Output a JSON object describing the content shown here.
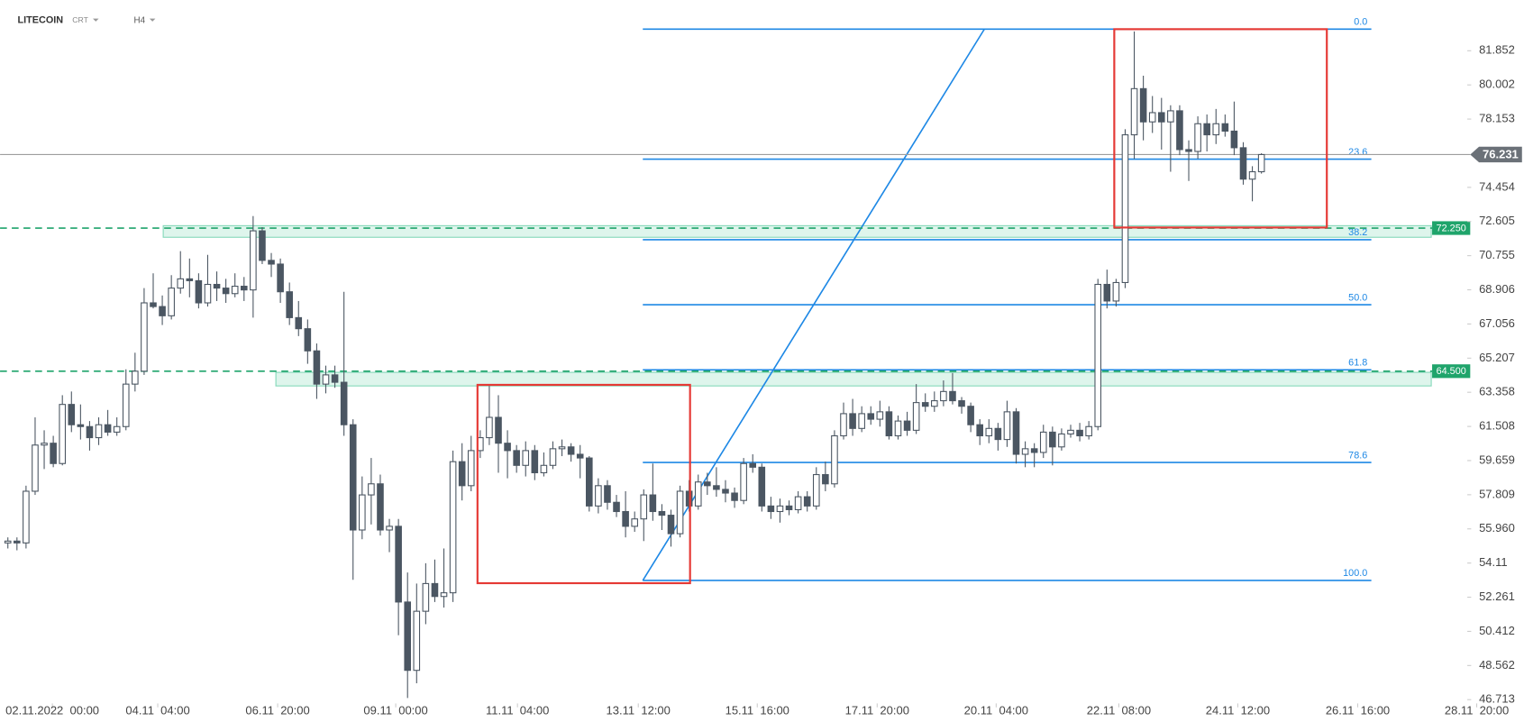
{
  "header": {
    "symbol": "LITECOIN",
    "source": "CRT",
    "interval": "H4"
  },
  "chart_data": {
    "type": "candlestick",
    "up_color": "#ffffff",
    "down_color": "#4b5662",
    "wick_color": "#4b5662",
    "xlim": [
      -0.86,
      166.9
    ],
    "ylim": [
      45.45,
      84.6
    ],
    "xticks": [
      {
        "value": 4.9,
        "label": "02.11.2022  00:00"
      },
      {
        "value": 16.5,
        "label": "04.11  04:00"
      },
      {
        "value": 29.7,
        "label": "06.11  20:00"
      },
      {
        "value": 42.7,
        "label": "09.11  00:00"
      },
      {
        "value": 56.1,
        "label": "11.11  04:00"
      },
      {
        "value": 69.4,
        "label": "13.11  12:00"
      },
      {
        "value": 82.5,
        "label": "15.11  16:00"
      },
      {
        "value": 95.7,
        "label": "17.11  20:00"
      },
      {
        "value": 108.8,
        "label": "20.11  04:00"
      },
      {
        "value": 122.3,
        "label": "22.11  08:00"
      },
      {
        "value": 135.4,
        "label": "24.11  12:00"
      },
      {
        "value": 148.6,
        "label": "26.11  16:00"
      },
      {
        "value": 161.7,
        "label": "28.11  20:00"
      }
    ],
    "yticks": [
      81.852,
      80.002,
      78.153,
      74.454,
      72.605,
      70.755,
      68.906,
      67.056,
      65.207,
      63.358,
      61.508,
      59.659,
      57.809,
      {
        "value": 55.96,
        "label": "55.960"
      },
      54.11,
      52.261,
      50.412,
      48.562,
      46.713
    ],
    "current_price": 76.231,
    "levels": [
      {
        "value": 72.25,
        "label": "72.250"
      },
      {
        "value": 64.5,
        "label": "64.500"
      }
    ],
    "zones": [
      {
        "from": 17.1,
        "to": 156.7,
        "low": 71.75,
        "high": 72.38
      },
      {
        "from": 29.5,
        "to": 156.7,
        "low": 63.7,
        "high": 64.44
      }
    ],
    "boxes": [
      {
        "from": 51.7,
        "to": 75.1,
        "low": 53.02,
        "high": 63.76
      },
      {
        "from": 121.8,
        "to": 145.2,
        "low": 72.28,
        "high": 83.02
      }
    ],
    "trendline": {
      "x": [
        69.9,
        107.5
      ],
      "y": [
        53.17,
        83.02
      ]
    },
    "fib_x": [
      69.9,
      150.1
    ],
    "fib_levels": [
      {
        "label": "0.0",
        "price": 83.02
      },
      {
        "label": "23.6",
        "price": 75.98
      },
      {
        "label": "38.2",
        "price": 71.62
      },
      {
        "label": "50.0",
        "price": 68.1
      },
      {
        "label": "61.8",
        "price": 64.57
      },
      {
        "label": "78.6",
        "price": 59.56
      },
      {
        "label": "100.0",
        "price": 53.17
      }
    ],
    "candles": [
      [
        55.2,
        55.5,
        54.9,
        55.3
      ],
      [
        55.3,
        55.5,
        54.8,
        55.2
      ],
      [
        55.2,
        58.3,
        54.9,
        58.0
      ],
      [
        58.0,
        62.0,
        57.8,
        60.5
      ],
      [
        60.5,
        61.3,
        59.2,
        60.6
      ],
      [
        60.6,
        61.0,
        59.3,
        59.5
      ],
      [
        59.5,
        63.2,
        59.4,
        62.7
      ],
      [
        62.7,
        63.4,
        61.2,
        61.6
      ],
      [
        61.6,
        62.7,
        60.8,
        61.5
      ],
      [
        61.5,
        61.8,
        60.2,
        60.9
      ],
      [
        60.9,
        62.0,
        60.5,
        61.6
      ],
      [
        61.6,
        62.4,
        61.0,
        61.2
      ],
      [
        61.2,
        62.0,
        61.0,
        61.5
      ],
      [
        61.5,
        64.6,
        61.3,
        63.8
      ],
      [
        63.8,
        65.5,
        63.4,
        64.5
      ],
      [
        64.5,
        69.0,
        64.3,
        68.2
      ],
      [
        68.2,
        69.8,
        67.9,
        68.0
      ],
      [
        68.0,
        68.6,
        67.0,
        67.5
      ],
      [
        67.5,
        69.7,
        67.3,
        69.0
      ],
      [
        69.0,
        71.0,
        68.7,
        69.5
      ],
      [
        69.5,
        70.6,
        68.5,
        69.4
      ],
      [
        69.4,
        69.8,
        67.9,
        68.2
      ],
      [
        68.2,
        70.8,
        68.0,
        69.2
      ],
      [
        69.2,
        69.9,
        68.3,
        69.0
      ],
      [
        69.0,
        69.5,
        68.2,
        68.7
      ],
      [
        68.7,
        69.8,
        68.5,
        69.1
      ],
      [
        69.1,
        69.6,
        68.3,
        68.9
      ],
      [
        68.9,
        72.9,
        67.4,
        72.1
      ],
      [
        72.1,
        72.3,
        70.3,
        70.5
      ],
      [
        70.5,
        70.9,
        69.6,
        70.3
      ],
      [
        70.3,
        70.6,
        68.2,
        68.8
      ],
      [
        68.8,
        69.3,
        67.0,
        67.4
      ],
      [
        67.4,
        68.3,
        66.4,
        66.8
      ],
      [
        66.8,
        67.3,
        64.9,
        65.6
      ],
      [
        65.6,
        66.0,
        63.0,
        63.8
      ],
      [
        63.8,
        64.8,
        63.3,
        64.3
      ],
      [
        64.3,
        64.8,
        63.6,
        63.9
      ],
      [
        63.9,
        68.8,
        61.0,
        61.6
      ],
      [
        61.6,
        61.9,
        53.2,
        55.9
      ],
      [
        55.9,
        58.8,
        55.4,
        57.8
      ],
      [
        57.8,
        59.8,
        56.2,
        58.4
      ],
      [
        58.4,
        58.9,
        55.6,
        55.9
      ],
      [
        55.9,
        56.5,
        54.7,
        56.1
      ],
      [
        56.1,
        56.5,
        50.2,
        52.0
      ],
      [
        52.0,
        53.6,
        46.8,
        48.3
      ],
      [
        48.3,
        53.0,
        47.6,
        51.5
      ],
      [
        51.5,
        54.1,
        50.8,
        53.0
      ],
      [
        53.0,
        54.3,
        52.0,
        52.3
      ],
      [
        52.3,
        54.9,
        51.7,
        52.5
      ],
      [
        52.5,
        60.2,
        52.0,
        59.6
      ],
      [
        59.6,
        60.6,
        57.5,
        58.3
      ],
      [
        58.3,
        61.0,
        58.0,
        60.2
      ],
      [
        60.2,
        61.3,
        59.8,
        60.9
      ],
      [
        60.9,
        63.7,
        60.5,
        62.0
      ],
      [
        62.0,
        63.2,
        59.0,
        60.6
      ],
      [
        60.6,
        61.3,
        58.7,
        60.2
      ],
      [
        60.2,
        60.5,
        59.0,
        59.4
      ],
      [
        59.4,
        60.7,
        58.8,
        60.2
      ],
      [
        60.2,
        60.5,
        58.6,
        59.0
      ],
      [
        59.0,
        60.1,
        58.8,
        59.4
      ],
      [
        59.4,
        60.7,
        59.2,
        60.3
      ],
      [
        60.3,
        60.8,
        59.9,
        60.4
      ],
      [
        60.4,
        60.6,
        59.6,
        60.0
      ],
      [
        60.0,
        60.5,
        58.7,
        59.8
      ],
      [
        59.8,
        59.9,
        56.9,
        57.2
      ],
      [
        57.2,
        58.7,
        56.8,
        58.3
      ],
      [
        58.3,
        58.6,
        57.0,
        57.4
      ],
      [
        57.4,
        57.8,
        56.6,
        56.9
      ],
      [
        56.9,
        58.0,
        55.5,
        56.1
      ],
      [
        56.1,
        56.9,
        55.8,
        56.5
      ],
      [
        56.5,
        58.1,
        55.3,
        57.8
      ],
      [
        57.8,
        59.5,
        56.4,
        56.9
      ],
      [
        56.9,
        57.3,
        55.9,
        56.7
      ],
      [
        56.7,
        57.0,
        55.0,
        55.7
      ],
      [
        55.7,
        58.3,
        55.5,
        58.0
      ],
      [
        58.0,
        58.6,
        56.9,
        57.2
      ],
      [
        57.2,
        58.9,
        57.0,
        58.5
      ],
      [
        58.5,
        59.0,
        57.8,
        58.3
      ],
      [
        58.3,
        59.3,
        57.7,
        58.1
      ],
      [
        58.1,
        58.6,
        57.4,
        57.9
      ],
      [
        57.9,
        58.2,
        57.1,
        57.5
      ],
      [
        57.5,
        59.8,
        57.3,
        59.5
      ],
      [
        59.5,
        60.0,
        59.0,
        59.3
      ],
      [
        59.3,
        59.5,
        56.9,
        57.2
      ],
      [
        57.2,
        57.7,
        56.5,
        56.9
      ],
      [
        56.9,
        57.6,
        56.3,
        57.2
      ],
      [
        57.2,
        57.5,
        56.7,
        57.0
      ],
      [
        57.0,
        58.0,
        56.8,
        57.7
      ],
      [
        57.7,
        58.0,
        56.9,
        57.2
      ],
      [
        57.2,
        59.3,
        57.0,
        58.9
      ],
      [
        58.9,
        59.6,
        58.0,
        58.4
      ],
      [
        58.4,
        61.3,
        58.2,
        61.0
      ],
      [
        61.0,
        62.8,
        60.8,
        62.2
      ],
      [
        62.2,
        63.0,
        61.0,
        61.4
      ],
      [
        61.4,
        62.6,
        61.2,
        62.2
      ],
      [
        62.2,
        62.6,
        61.6,
        61.9
      ],
      [
        61.9,
        62.9,
        61.5,
        62.3
      ],
      [
        62.3,
        62.6,
        60.8,
        61.0
      ],
      [
        61.0,
        62.1,
        60.8,
        61.8
      ],
      [
        61.8,
        62.3,
        61.0,
        61.3
      ],
      [
        61.3,
        63.8,
        61.1,
        62.8
      ],
      [
        62.8,
        63.3,
        62.3,
        62.6
      ],
      [
        62.6,
        63.4,
        62.3,
        62.9
      ],
      [
        62.9,
        64.0,
        62.6,
        63.4
      ],
      [
        63.4,
        64.4,
        62.7,
        62.9
      ],
      [
        62.9,
        63.1,
        62.2,
        62.6
      ],
      [
        62.6,
        62.8,
        61.2,
        61.6
      ],
      [
        61.6,
        61.9,
        60.5,
        61.0
      ],
      [
        61.0,
        61.9,
        60.6,
        61.4
      ],
      [
        61.4,
        61.7,
        60.2,
        60.8
      ],
      [
        60.8,
        62.9,
        60.4,
        62.3
      ],
      [
        62.3,
        62.5,
        59.5,
        60.0
      ],
      [
        60.0,
        60.7,
        59.3,
        60.3
      ],
      [
        60.3,
        60.6,
        59.3,
        60.1
      ],
      [
        60.1,
        61.6,
        59.8,
        61.2
      ],
      [
        61.2,
        61.5,
        59.4,
        60.4
      ],
      [
        60.4,
        61.4,
        60.2,
        61.1
      ],
      [
        61.1,
        61.6,
        60.9,
        61.3
      ],
      [
        61.3,
        61.7,
        60.7,
        61.0
      ],
      [
        61.0,
        61.8,
        60.8,
        61.5
      ],
      [
        61.5,
        69.5,
        61.3,
        69.2
      ],
      [
        69.2,
        70.0,
        67.9,
        68.3
      ],
      [
        68.3,
        69.5,
        68.0,
        69.3
      ],
      [
        69.3,
        77.6,
        69.0,
        77.3
      ],
      [
        77.3,
        82.9,
        76.0,
        79.8
      ],
      [
        79.8,
        80.5,
        77.0,
        78.0
      ],
      [
        78.0,
        79.4,
        77.4,
        78.5
      ],
      [
        78.5,
        79.3,
        76.5,
        78.0
      ],
      [
        78.0,
        78.9,
        75.3,
        78.6
      ],
      [
        78.6,
        78.9,
        76.2,
        76.5
      ],
      [
        76.5,
        77.0,
        74.8,
        76.4
      ],
      [
        76.4,
        78.3,
        76.0,
        77.9
      ],
      [
        77.9,
        78.4,
        76.4,
        77.3
      ],
      [
        77.3,
        78.7,
        76.8,
        77.9
      ],
      [
        77.9,
        78.4,
        77.2,
        77.5
      ],
      [
        77.5,
        79.1,
        76.2,
        76.6
      ],
      [
        76.6,
        76.9,
        74.6,
        74.9
      ],
      [
        74.9,
        75.6,
        73.7,
        75.3
      ],
      [
        75.3,
        76.3,
        75.2,
        76.231
      ]
    ]
  }
}
